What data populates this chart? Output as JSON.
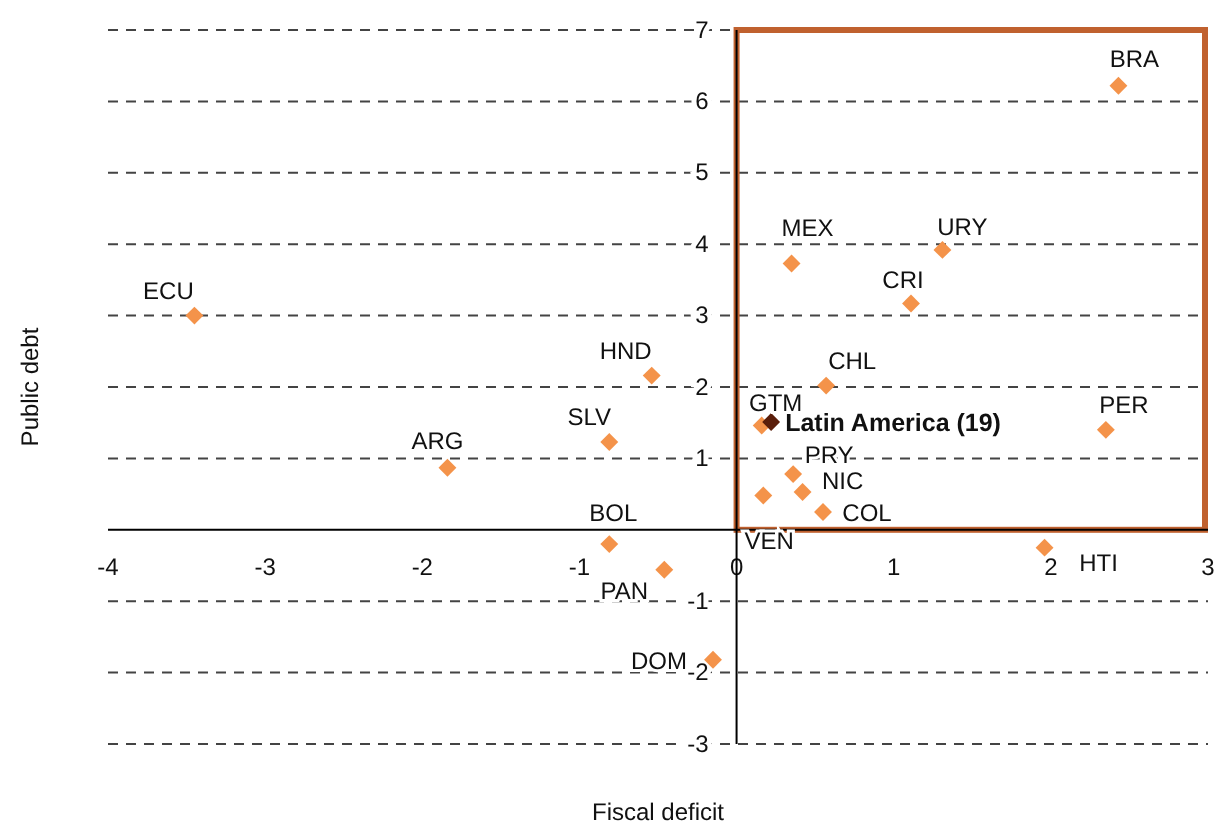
{
  "chart_data": {
    "type": "scatter",
    "xlabel": "Fiscal deficit",
    "ylabel": "Public debt",
    "xlim": [
      -4,
      3
    ],
    "xticks": [
      -4,
      -3,
      -2,
      -1,
      0,
      1,
      2,
      3
    ],
    "ylim": [
      -3,
      7
    ],
    "yticks": [
      -3,
      -2,
      -1,
      1,
      2,
      3,
      4,
      5,
      6,
      7
    ],
    "grid": "y",
    "marker": "diamond",
    "series": [
      {
        "color": "#f4934a",
        "x": [
          -3.45,
          -1.84,
          -0.81,
          -0.54,
          -0.81,
          -0.46,
          -0.15,
          0.17,
          0.55,
          0.42,
          0.36,
          0.16,
          0.57,
          1.11,
          0.35,
          1.31,
          2.43,
          2.35,
          1.96
        ],
        "values": [
          3.0,
          0.87,
          1.23,
          2.16,
          -0.2,
          -0.56,
          -1.82,
          0.48,
          0.25,
          0.53,
          0.78,
          1.46,
          2.02,
          3.17,
          3.73,
          3.92,
          6.22,
          1.4,
          -0.25
        ]
      },
      {
        "name": "Latin America (19)",
        "color": "#5a1e0a",
        "x": [
          0.22
        ],
        "values": [
          1.51
        ]
      }
    ],
    "annotations": [
      {
        "text": "ECU",
        "x": -3.45,
        "y": 3.0
      },
      {
        "text": "ARG",
        "x": -1.84,
        "y": 0.87
      },
      {
        "text": "SLV",
        "x": -0.81,
        "y": 1.23
      },
      {
        "text": "HND",
        "x": -0.54,
        "y": 2.16
      },
      {
        "text": "BOL",
        "x": -0.81,
        "y": -0.2
      },
      {
        "text": "PAN",
        "x": -0.46,
        "y": -0.56
      },
      {
        "text": "DOM",
        "x": -0.15,
        "y": -1.82
      },
      {
        "text": "VEN",
        "x": 0.17,
        "y": 0.48
      },
      {
        "text": "COL",
        "x": 0.55,
        "y": 0.25
      },
      {
        "text": "NIC",
        "x": 0.42,
        "y": 0.53
      },
      {
        "text": "PRY",
        "x": 0.36,
        "y": 0.78
      },
      {
        "text": "GTM",
        "x": 0.16,
        "y": 1.46
      },
      {
        "text": "CHL",
        "x": 0.57,
        "y": 2.02
      },
      {
        "text": "CRI",
        "x": 1.11,
        "y": 3.17
      },
      {
        "text": "MEX",
        "x": 0.35,
        "y": 3.73
      },
      {
        "text": "URY",
        "x": 1.31,
        "y": 3.92
      },
      {
        "text": "BRA",
        "x": 2.43,
        "y": 6.22
      },
      {
        "text": "PER",
        "x": 2.35,
        "y": 1.4
      },
      {
        "text": "HTI",
        "x": 1.96,
        "y": -0.25
      }
    ]
  }
}
